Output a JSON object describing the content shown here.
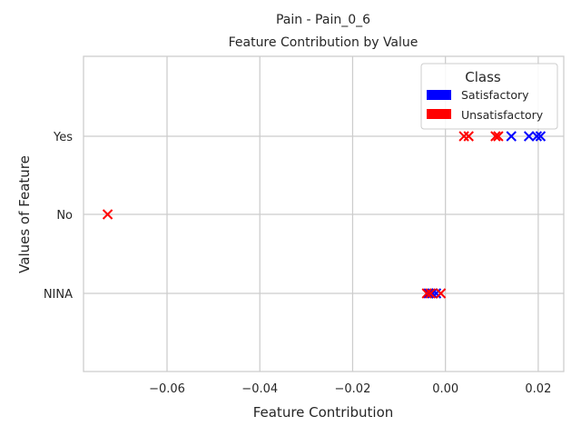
{
  "chart_data": {
    "type": "scatter",
    "title": "Pain - Pain_0_6",
    "subtitle": "Feature Contribution by Value",
    "xlabel": "Feature Contribution",
    "ylabel": "Values of Feature",
    "categories": [
      "NINA",
      "No",
      "Yes"
    ],
    "xlim": [
      -0.078,
      0.0255
    ],
    "x_ticks": [
      "−0.06",
      "−0.04",
      "−0.02",
      "0.00",
      "0.02"
    ],
    "x_tick_values": [
      -0.06,
      -0.04,
      -0.02,
      0.0,
      0.02
    ],
    "grid": true,
    "marker": "x",
    "legend": {
      "title": "Class",
      "placement": "top-right"
    },
    "series": [
      {
        "name": "Satisfactory",
        "color": "#0000ff",
        "points": [
          {
            "x": 0.0142,
            "y": "Yes"
          },
          {
            "x": 0.018,
            "y": "Yes"
          },
          {
            "x": 0.0197,
            "y": "Yes"
          },
          {
            "x": 0.0205,
            "y": "Yes"
          },
          {
            "x": -0.0036,
            "y": "NINA"
          },
          {
            "x": -0.0028,
            "y": "NINA"
          },
          {
            "x": -0.002,
            "y": "NINA"
          }
        ]
      },
      {
        "name": "Unsatisfactory",
        "color": "#ff0000",
        "points": [
          {
            "x": 0.004,
            "y": "Yes"
          },
          {
            "x": 0.005,
            "y": "Yes"
          },
          {
            "x": 0.0108,
            "y": "Yes"
          },
          {
            "x": 0.0114,
            "y": "Yes"
          },
          {
            "x": -0.0728,
            "y": "No"
          },
          {
            "x": -0.004,
            "y": "NINA"
          },
          {
            "x": -0.0032,
            "y": "NINA"
          },
          {
            "x": -0.001,
            "y": "NINA"
          }
        ]
      }
    ]
  }
}
